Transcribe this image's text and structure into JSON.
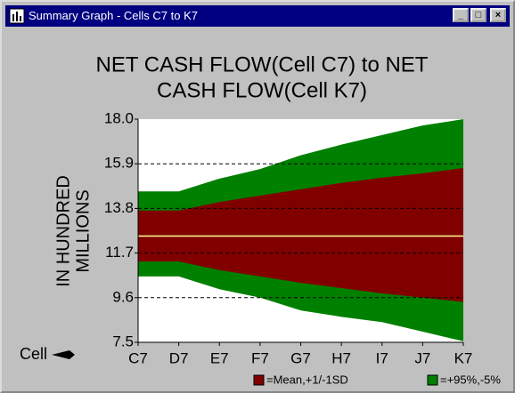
{
  "window_title": "Summary Graph - Cells C7 to K7",
  "chart_data": {
    "type": "band",
    "title": [
      "NET CASH FLOW(Cell C7) to NET",
      "CASH FLOW(Cell K7)"
    ],
    "y_label": [
      "IN HUNDRED",
      "MILLIONS"
    ],
    "x_label": "Cell",
    "categories": [
      "C7",
      "D7",
      "E7",
      "F7",
      "G7",
      "H7",
      "I7",
      "J7",
      "K7"
    ],
    "ylim": [
      7.5,
      18
    ],
    "yticks": [
      7.5,
      9.6,
      11.7,
      13.8,
      15.9,
      {
        "value": 18,
        "label": "18.0"
      }
    ],
    "grid": true,
    "series": [
      {
        "name": "=+95%,-5%",
        "color": "#008000",
        "low": [
          10.6,
          10.6,
          10.0,
          9.6,
          9.0,
          8.7,
          8.45,
          8.0,
          7.55
        ],
        "high": [
          14.6,
          14.6,
          15.2,
          15.65,
          16.3,
          16.8,
          17.25,
          17.7,
          18.0
        ]
      },
      {
        "name": "=Mean,+1/-1SD",
        "color": "#800000",
        "low": [
          11.3,
          11.3,
          10.9,
          10.6,
          10.3,
          10.05,
          9.8,
          9.6,
          9.4
        ],
        "high": [
          13.7,
          13.7,
          14.1,
          14.4,
          14.7,
          15.0,
          15.25,
          15.45,
          15.7
        ]
      }
    ],
    "mean": {
      "color": "#ffff99",
      "values": [
        12.5,
        12.5,
        12.5,
        12.5,
        12.5,
        12.5,
        12.5,
        12.5,
        12.5
      ]
    }
  }
}
